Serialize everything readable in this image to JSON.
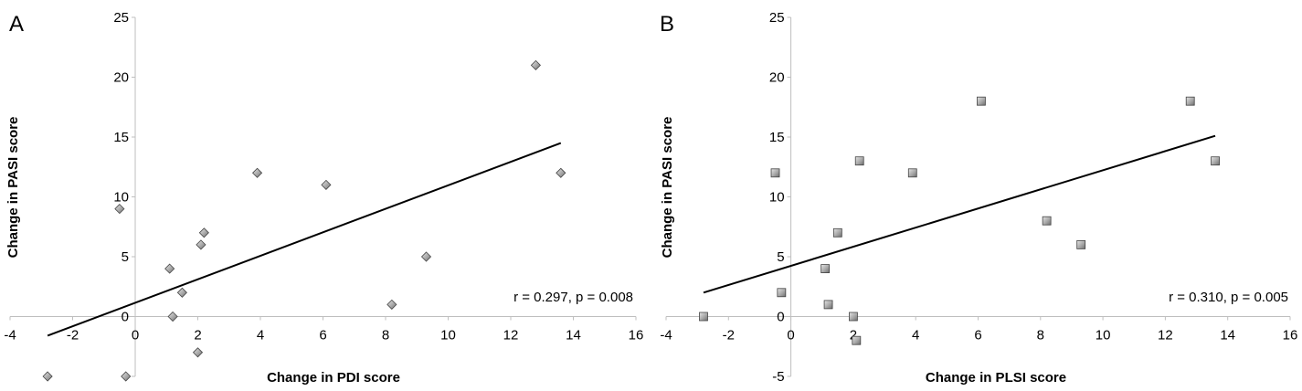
{
  "chart_data": [
    {
      "type": "scatter",
      "panel_label": "A",
      "xlabel": "Change in PDI score",
      "ylabel": "Change in PASI score",
      "xlim": [
        -4,
        16
      ],
      "ylim": [
        -5,
        25
      ],
      "x_ticks": [
        -4,
        -2,
        0,
        2,
        4,
        6,
        8,
        10,
        12,
        14,
        16
      ],
      "y_ticks": [
        0,
        5,
        10,
        15,
        20,
        25
      ],
      "y_tick_labels": [
        "0",
        "5",
        "10",
        "15",
        "20",
        "25"
      ],
      "marker": "diamond",
      "points": [
        {
          "x": -2.8,
          "y": -5
        },
        {
          "x": -0.3,
          "y": -5
        },
        {
          "x": -0.5,
          "y": 9
        },
        {
          "x": 1.1,
          "y": 4
        },
        {
          "x": 1.2,
          "y": 0
        },
        {
          "x": 1.5,
          "y": 2
        },
        {
          "x": 2.0,
          "y": -3
        },
        {
          "x": 2.1,
          "y": 6
        },
        {
          "x": 2.2,
          "y": 7
        },
        {
          "x": 3.9,
          "y": 12
        },
        {
          "x": 6.1,
          "y": 11
        },
        {
          "x": 8.2,
          "y": 1
        },
        {
          "x": 9.3,
          "y": 5
        },
        {
          "x": 12.8,
          "y": 21
        },
        {
          "x": 13.6,
          "y": 12
        }
      ],
      "trendline": {
        "x": [
          -2.8,
          13.6
        ],
        "y": [
          -1.6,
          14.5
        ]
      },
      "annotation": "r = 0.297, p = 0.008"
    },
    {
      "type": "scatter",
      "panel_label": "B",
      "xlabel": "Change in PLSI score",
      "ylabel": "Change in PASI score",
      "xlim": [
        -4,
        16
      ],
      "ylim": [
        -5,
        25
      ],
      "x_ticks": [
        -4,
        -2,
        0,
        2,
        4,
        6,
        8,
        10,
        12,
        14,
        16
      ],
      "y_ticks": [
        -5,
        0,
        5,
        10,
        15,
        20,
        25
      ],
      "y_tick_labels": [
        "-5",
        "0",
        "5",
        "10",
        "15",
        "20",
        "25"
      ],
      "marker": "square",
      "points": [
        {
          "x": -2.8,
          "y": 0
        },
        {
          "x": -0.5,
          "y": 12
        },
        {
          "x": -0.3,
          "y": 2
        },
        {
          "x": 1.1,
          "y": 4
        },
        {
          "x": 1.2,
          "y": 1
        },
        {
          "x": 1.5,
          "y": 7
        },
        {
          "x": 2.0,
          "y": 0
        },
        {
          "x": 2.1,
          "y": -2
        },
        {
          "x": 2.2,
          "y": 13
        },
        {
          "x": 3.9,
          "y": 12
        },
        {
          "x": 6.1,
          "y": 18
        },
        {
          "x": 8.2,
          "y": 8
        },
        {
          "x": 9.3,
          "y": 6
        },
        {
          "x": 12.8,
          "y": 18
        },
        {
          "x": 13.6,
          "y": 13
        }
      ],
      "trendline": {
        "x": [
          -2.8,
          13.6
        ],
        "y": [
          2,
          15.1
        ]
      },
      "annotation": "r = 0.310, p = 0.005"
    }
  ]
}
